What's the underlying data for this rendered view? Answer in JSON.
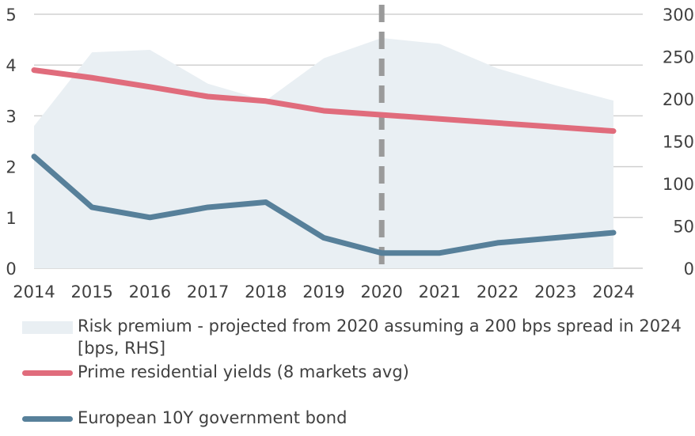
{
  "chart_data": {
    "type": "line",
    "x": [
      "2014",
      "2015",
      "2016",
      "2017",
      "2018",
      "2019",
      "2020",
      "2021",
      "2022",
      "2023",
      "2024"
    ],
    "ylim_left": [
      0,
      5
    ],
    "yticks_left": [
      "0",
      "1",
      "2",
      "3",
      "4",
      "5"
    ],
    "ylim_right": [
      0,
      300
    ],
    "yticks_right": [
      "0",
      "50",
      "100",
      "150",
      "200",
      "250",
      "300"
    ],
    "vertical_marker": "2020",
    "grid": "horizontal",
    "legend_position": "bottom",
    "series": [
      {
        "name": "Risk premium - projected from 2020 assuming a 200 bps spread in 2024 [bps, RHS]",
        "kind": "area",
        "axis": "right",
        "color": "#e9eff3",
        "values": [
          168,
          255,
          258,
          218,
          198,
          248,
          272,
          265,
          236,
          216,
          198
        ]
      },
      {
        "name": "Prime residential yields (8 markets avg)",
        "kind": "line",
        "axis": "left",
        "color": "#e06c7c",
        "values": [
          3.9,
          3.75,
          3.57,
          3.38,
          3.29,
          3.1,
          3.02,
          2.94,
          2.86,
          2.78,
          2.7
        ]
      },
      {
        "name": "European 10Y government bond",
        "kind": "line",
        "axis": "left",
        "color": "#57809a",
        "values": [
          2.2,
          1.2,
          1.0,
          1.2,
          1.3,
          0.6,
          0.3,
          0.3,
          0.5,
          0.6,
          0.7
        ]
      }
    ]
  }
}
